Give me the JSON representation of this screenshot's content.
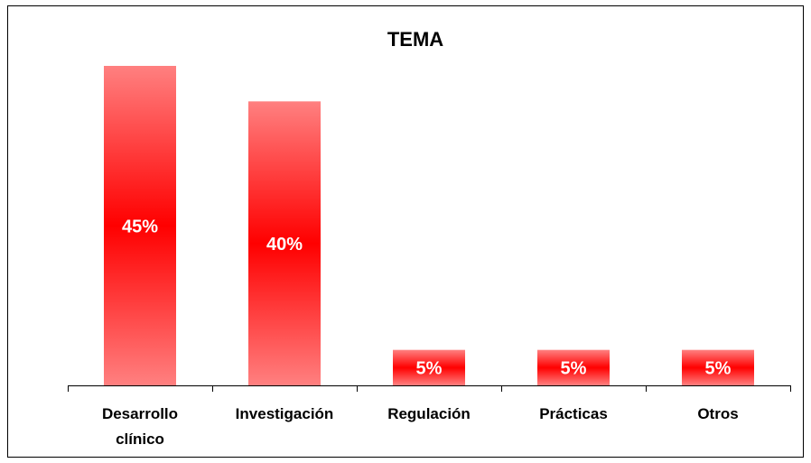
{
  "chart_data": {
    "type": "bar",
    "title": "TEMA",
    "categories": [
      "Desarrollo clínico",
      "Investigación",
      "Regulación",
      "Prácticas",
      "Otros"
    ],
    "values": [
      45,
      40,
      5,
      5,
      5
    ],
    "value_labels": [
      "45%",
      "40%",
      "5%",
      "5%",
      "5%"
    ]
  }
}
